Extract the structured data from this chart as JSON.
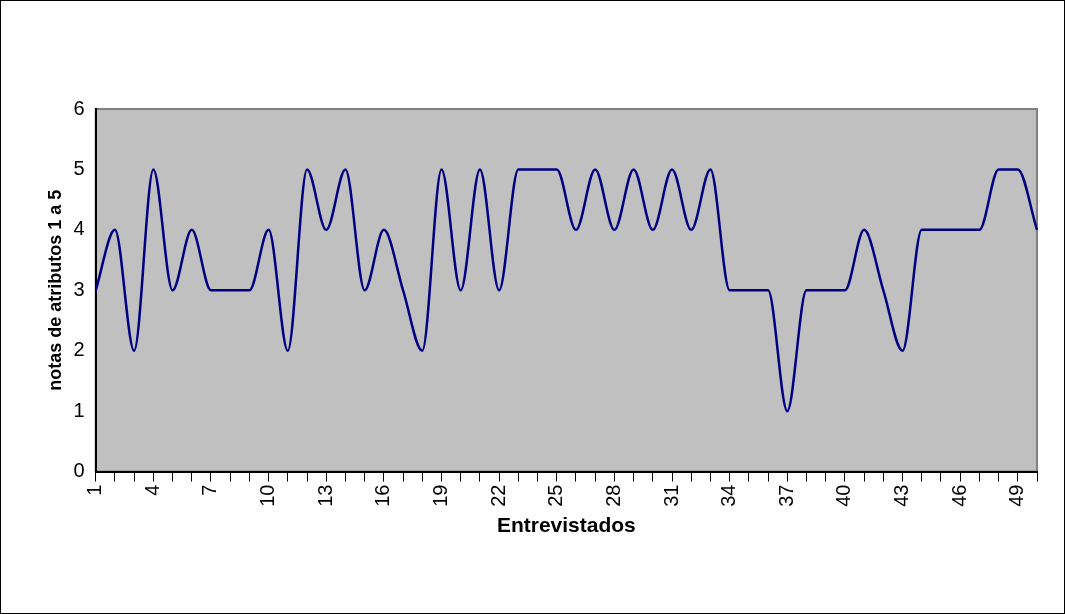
{
  "chart_data": {
    "type": "line",
    "xlabel": "Entrevistados",
    "ylabel": "notas de atributos 1 a 5",
    "categories": [
      "1",
      null,
      null,
      "4",
      null,
      null,
      "7",
      null,
      null,
      "10",
      null,
      null,
      "13",
      null,
      null,
      "16",
      null,
      null,
      "19",
      null,
      null,
      "22",
      null,
      null,
      "25",
      null,
      null,
      "28",
      null,
      null,
      "31",
      null,
      null,
      "34",
      null,
      null,
      "37",
      null,
      null,
      "40",
      null,
      null,
      "43",
      null,
      null,
      "46",
      null,
      null,
      "49",
      null
    ],
    "series": [
      {
        "color": "#000080",
        "values": [
          3,
          4,
          2,
          5,
          3,
          4,
          3,
          3,
          3,
          4,
          2,
          5,
          4,
          5,
          3,
          4,
          3,
          2,
          5,
          3,
          5,
          3,
          5,
          5,
          5,
          4,
          5,
          4,
          5,
          4,
          5,
          4,
          5,
          3,
          3,
          3,
          1,
          3,
          3,
          3,
          4,
          3,
          2,
          4,
          4,
          4,
          4,
          5,
          5,
          4
        ]
      }
    ],
    "ylim": [
      0,
      6
    ],
    "yticks": [
      0,
      1,
      2,
      3,
      4,
      5,
      6
    ],
    "marker": "none"
  }
}
